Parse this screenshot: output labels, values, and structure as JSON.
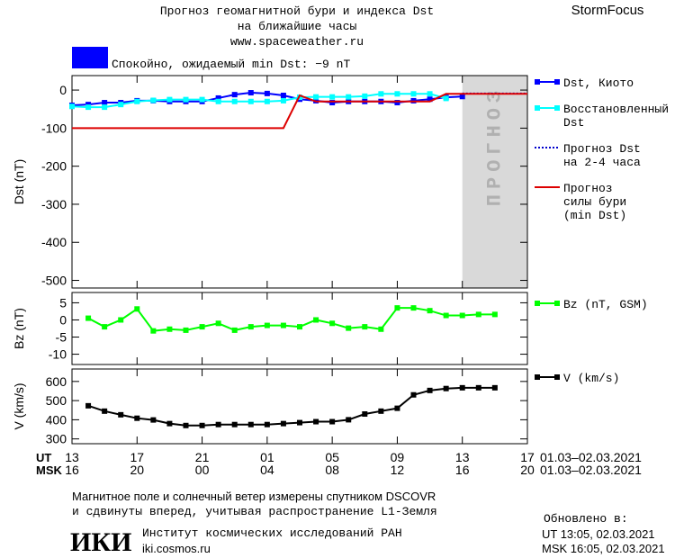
{
  "header": {
    "title": "Прогноз геомагнитной бури и индекса Dst",
    "subtitle": "на ближайшие часы",
    "url": "www.spaceweather.ru",
    "brand": "StormFocus",
    "status": "Спокойно, ожидаемый min Dst: −9 nT",
    "status_color": "#0000ff"
  },
  "chart_data": [
    {
      "type": "line",
      "ylabel": "Dst (nT)",
      "xlim": [
        0,
        28
      ],
      "ylim": [
        -520,
        38
      ],
      "yticks": [
        0,
        -100,
        -200,
        -300,
        -400,
        -500
      ],
      "forecast_band": {
        "xlim": [
          24,
          28
        ],
        "label": "ПРОГНОЗ",
        "color": "#d9d9d9"
      },
      "series": [
        {
          "name": "Dst, Киото",
          "color": "#0000ff",
          "marker": "square",
          "x": [
            0,
            1,
            2,
            3,
            4,
            5,
            6,
            7,
            8,
            9,
            10,
            11,
            12,
            13,
            14,
            15,
            16,
            17,
            18,
            19,
            20,
            21,
            22,
            23,
            24
          ],
          "values": [
            -40,
            -38,
            -33,
            -33,
            -28,
            -28,
            -30,
            -30,
            -30,
            -21,
            -12,
            -7,
            -9,
            -14,
            -24,
            -28,
            -33,
            -30,
            -30,
            -30,
            -33,
            -28,
            -24,
            -19,
            -17
          ]
        },
        {
          "name": "Восстановленный\nDst",
          "color": "#00ffff",
          "marker": "square",
          "x": [
            0,
            1,
            2,
            3,
            4,
            5,
            6,
            7,
            8,
            9,
            10,
            11,
            12,
            13,
            14,
            15,
            16,
            17,
            18,
            19,
            20,
            21,
            22,
            23
          ],
          "values": [
            -43,
            -45,
            -45,
            -38,
            -30,
            -27,
            -25,
            -25,
            -25,
            -30,
            -30,
            -30,
            -30,
            -28,
            -19,
            -18,
            -18,
            -18,
            -16,
            -10,
            -10,
            -10,
            -10,
            -22
          ]
        },
        {
          "name": "Прогноз Dst\nна 2-4 часа",
          "color": "#0000cc",
          "dash": "2,2",
          "x": [
            24,
            28
          ],
          "values": [
            -9,
            -9
          ]
        },
        {
          "name": "Прогноз\nсилы бури\n(min Dst)",
          "color": "#dd0000",
          "x": [
            0,
            13,
            14,
            15,
            21,
            22,
            23,
            28
          ],
          "values": [
            -100,
            -100,
            -14,
            -30,
            -30,
            -30,
            -10,
            -10
          ]
        }
      ]
    },
    {
      "type": "line",
      "ylabel": "Bz (nT)",
      "xlim": [
        0,
        28
      ],
      "ylim": [
        -13,
        8
      ],
      "yticks": [
        5,
        0,
        -5,
        -10
      ],
      "series": [
        {
          "name": "Bz (nT, GSM)",
          "color": "#00ff00",
          "marker": "square",
          "x": [
            1,
            2,
            3,
            4,
            5,
            6,
            7,
            8,
            9,
            10,
            11,
            12,
            13,
            14,
            15,
            16,
            17,
            18,
            19,
            20,
            21,
            22,
            23,
            24,
            25,
            26
          ],
          "values": [
            0.5,
            -2,
            0,
            3.2,
            -3.2,
            -2.7,
            -3,
            -2,
            -1,
            -3,
            -2,
            -1.6,
            -1.6,
            -2,
            0,
            -1,
            -2.4,
            -2,
            -2.7,
            3.5,
            3.5,
            2.7,
            1.3,
            1.3,
            1.6,
            1.6
          ]
        }
      ]
    },
    {
      "type": "line",
      "ylabel": "V (km/s)",
      "xlim": [
        0,
        28
      ],
      "ylim": [
        275,
        665
      ],
      "yticks": [
        300,
        400,
        500,
        600
      ],
      "xticks": [
        {
          "value": 0,
          "label": "13"
        },
        {
          "value": 4,
          "label": "17"
        },
        {
          "value": 8,
          "label": "21"
        },
        {
          "value": 12,
          "label": "01"
        },
        {
          "value": 16,
          "label": "05"
        },
        {
          "value": 20,
          "label": "09"
        },
        {
          "value": 24,
          "label": "13"
        },
        {
          "value": 28,
          "label": "17"
        }
      ],
      "xticks_msk": [
        {
          "value": 0,
          "label": "16"
        },
        {
          "value": 4,
          "label": "20"
        },
        {
          "value": 8,
          "label": "00"
        },
        {
          "value": 12,
          "label": "04"
        },
        {
          "value": 16,
          "label": "08"
        },
        {
          "value": 20,
          "label": "12"
        },
        {
          "value": 24,
          "label": "16"
        },
        {
          "value": 28,
          "label": "20"
        }
      ],
      "xrow_ut": "UT",
      "xrow_msk": "MSK",
      "date_ut": "01.03–02.03.2021",
      "date_msk": "01.03–02.03.2021",
      "series": [
        {
          "name": "V (km/s)",
          "color": "#000000",
          "marker": "square",
          "x": [
            1,
            2,
            3,
            4,
            5,
            6,
            7,
            8,
            9,
            10,
            11,
            12,
            13,
            14,
            15,
            16,
            17,
            18,
            19,
            20,
            21,
            22,
            23,
            24,
            25,
            26
          ],
          "values": [
            473,
            445,
            426,
            408,
            399,
            380,
            370,
            370,
            375,
            375,
            375,
            375,
            380,
            385,
            390,
            390,
            400,
            430,
            445,
            460,
            530,
            553,
            563,
            567,
            567,
            567
          ]
        }
      ]
    }
  ],
  "footer": {
    "line1": "Магнитное поле и солнечный ветер измерены спутником DSCOVR",
    "line2": "и сдвинуты вперед, учитывая распространение L1-Земля",
    "logo": "ИКИ",
    "institute": "Институт космических исследований РАН",
    "site": "iki.cosmos.ru",
    "updated": "Обновлено в:",
    "updated_ut": "UT  13:05, 02.03.2021",
    "updated_msk": "MSK 16:05, 02.03.2021"
  }
}
